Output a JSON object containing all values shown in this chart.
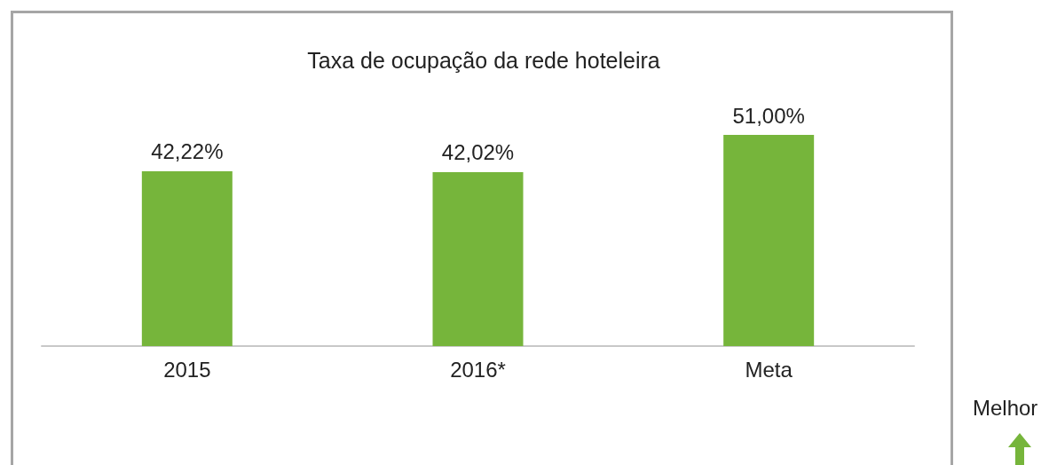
{
  "chart_data": {
    "type": "bar",
    "title": "Taxa de ocupação da rede hoteleira",
    "categories": [
      "2015",
      "2016*",
      "Meta"
    ],
    "values": [
      42.22,
      42.02,
      51.0
    ],
    "value_labels": [
      "42,22%",
      "42,02%",
      "51,00%"
    ],
    "color": "#76b53b",
    "annotations": [
      "Melhor"
    ]
  }
}
